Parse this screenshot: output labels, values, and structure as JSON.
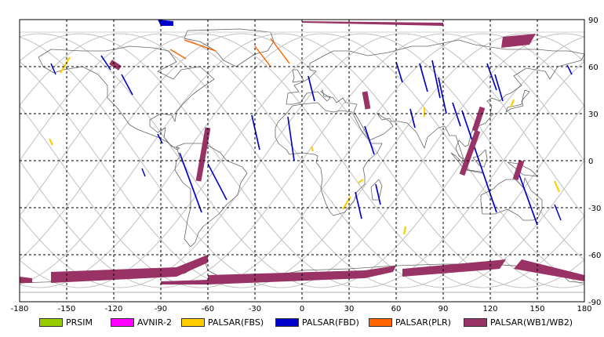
{
  "map": {
    "lon_ticks": [
      "-180",
      "-150",
      "-120",
      "-90",
      "-60",
      "-30",
      "0",
      "30",
      "60",
      "90",
      "120",
      "150",
      "180"
    ],
    "lat_ticks": [
      "90",
      "60",
      "30",
      "0",
      "-30",
      "-60",
      "-90"
    ],
    "colors": {
      "frame": "#000000",
      "grid": "#000000",
      "coast": "#666666",
      "orbit": "#c0c0c0",
      "PRSIM": "#99cc00",
      "AVNIR-2": "#ff00ff",
      "PALSAR(FBS)": "#ffcc00",
      "PALSAR(FBD)": "#0000cc",
      "PALSAR(PLR)": "#ff6600",
      "PALSAR(WB1/WB2)": "#993366"
    }
  },
  "legend": {
    "items": [
      {
        "label": "PRSIM",
        "color": "#99cc00"
      },
      {
        "label": "AVNIR-2",
        "color": "#ff00ff"
      },
      {
        "label": "PALSAR(FBS)",
        "color": "#ffcc00"
      },
      {
        "label": "PALSAR(FBD)",
        "color": "#0000cc"
      },
      {
        "label": "PALSAR(PLR)",
        "color": "#ff6600"
      },
      {
        "label": "PALSAR(WB1/WB2)",
        "color": "#993366"
      }
    ]
  }
}
